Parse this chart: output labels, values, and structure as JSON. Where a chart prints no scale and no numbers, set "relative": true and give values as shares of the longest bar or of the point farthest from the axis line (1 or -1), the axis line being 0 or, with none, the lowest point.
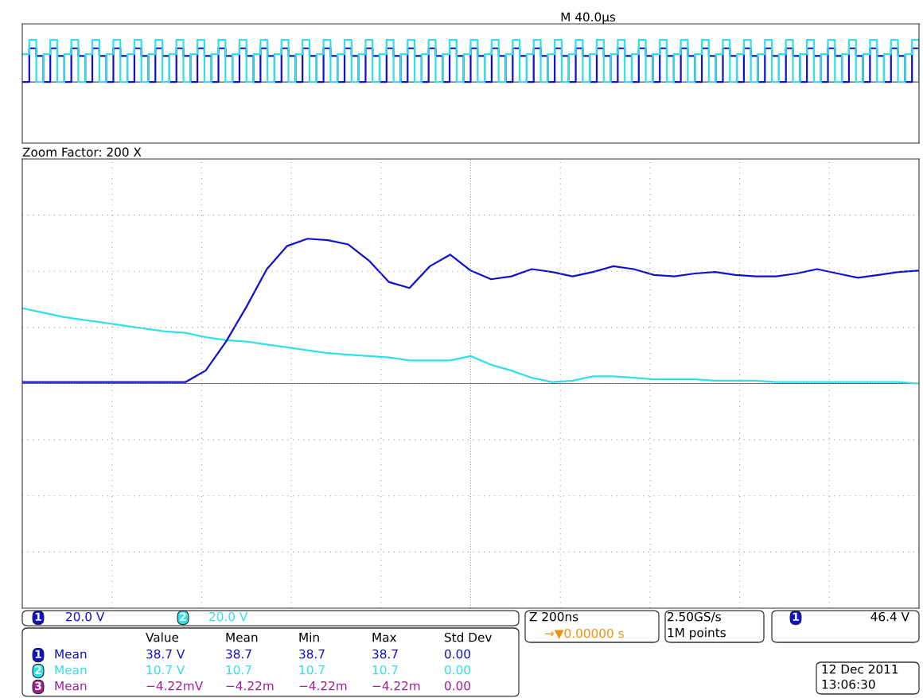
{
  "chart_data": [
    {
      "type": "step",
      "title": "M 40.0µs",
      "relative": true,
      "grid": false,
      "categories": [
        null,
        null,
        null,
        null,
        null,
        null,
        null,
        null,
        null,
        null,
        null,
        null,
        null,
        null,
        null,
        null,
        null,
        null,
        null,
        null,
        null,
        null,
        null,
        null,
        null,
        null,
        null,
        null,
        null,
        null,
        null,
        null,
        null,
        null,
        null,
        null,
        null,
        null,
        null,
        null,
        null,
        null,
        null,
        null,
        null,
        null,
        null,
        null,
        null,
        null,
        null,
        null,
        null,
        null,
        null,
        null,
        null,
        null,
        null,
        null,
        null,
        null,
        null,
        null,
        null,
        null,
        null,
        null,
        null,
        null,
        null,
        null,
        null,
        null,
        null,
        null,
        null,
        null,
        null,
        null,
        null,
        null,
        null,
        null,
        null,
        null,
        null,
        null,
        null,
        null,
        null,
        null,
        null,
        null,
        null,
        null,
        null,
        null,
        null,
        null,
        null,
        null,
        null,
        null,
        null,
        null,
        null,
        null,
        null,
        null,
        null,
        null,
        null,
        null,
        null,
        null,
        null,
        null,
        null,
        null,
        null,
        null,
        null,
        null,
        null,
        null,
        null,
        null,
        null
      ],
      "series": [
        {
          "color": "#1010d0",
          "values": [
            0,
            0.8,
            0.62,
            0,
            0.8,
            0.62,
            0,
            0.8,
            0.62,
            0,
            0.8,
            0.62,
            0,
            0.8,
            0.62,
            0,
            0.8,
            0.62,
            0,
            0.8,
            0.62,
            0,
            0.8,
            0.62,
            0,
            0.8,
            0.62,
            0,
            0.8,
            0.62,
            0,
            0.8,
            0.62,
            0,
            0.8,
            0.62,
            0,
            0.8,
            0.62,
            0,
            0.8,
            0.62,
            0,
            0.8,
            0.62,
            0,
            0.8,
            0.62,
            0,
            0.8,
            0.62,
            0,
            0.8,
            0.62,
            0,
            0.8,
            0.62,
            0,
            0.8,
            0.62,
            0,
            0.8,
            0.62,
            0,
            0.8,
            0.62,
            0,
            0.8,
            0.62,
            0,
            0.8,
            0.62,
            0,
            0.8,
            0.62,
            0,
            0.8,
            0.62,
            0,
            0.8,
            0.62,
            0,
            0.8,
            0.62,
            0,
            0.8,
            0.62,
            0,
            0.8,
            0.62,
            0,
            0.8,
            0.62,
            0,
            0.8,
            0.62,
            0,
            0.8,
            0.62,
            0,
            0.8,
            0.62,
            0,
            0.8,
            0.62,
            0,
            0.8,
            0.62,
            0,
            0.8,
            0.62,
            0,
            0.8,
            0.62,
            0,
            0.8,
            0.62,
            0,
            0.8,
            0.62,
            0,
            0.8,
            0.62,
            0,
            0.8,
            0.62,
            0,
            0.8,
            0.62
          ]
        },
        {
          "color": "#30e0e8",
          "values": [
            0.66,
            1.0,
            0,
            0.66,
            1.0,
            0,
            0.66,
            1.0,
            0,
            0.66,
            1.0,
            0,
            0.66,
            1.0,
            0,
            0.66,
            1.0,
            0,
            0.66,
            1.0,
            0,
            0.66,
            1.0,
            0,
            0.66,
            1.0,
            0,
            0.66,
            1.0,
            0,
            0.66,
            1.0,
            0,
            0.66,
            1.0,
            0,
            0.66,
            1.0,
            0,
            0.66,
            1.0,
            0,
            0.66,
            1.0,
            0,
            0.66,
            1.0,
            0,
            0.66,
            1.0,
            0,
            0.66,
            1.0,
            0,
            0.66,
            1.0,
            0,
            0.66,
            1.0,
            0,
            0.66,
            1.0,
            0,
            0.66,
            1.0,
            0,
            0.66,
            1.0,
            0,
            0.66,
            1.0,
            0,
            0.66,
            1.0,
            0,
            0.66,
            1.0,
            0,
            0.66,
            1.0,
            0,
            0.66,
            1.0,
            0,
            0.66,
            1.0,
            0,
            0.66,
            1.0,
            0,
            0.66,
            1.0,
            0,
            0.66,
            1.0,
            0,
            0.66,
            1.0,
            0,
            0.66,
            1.0,
            0,
            0.66,
            1.0,
            0,
            0.66,
            1.0,
            0,
            0.66,
            1.0,
            0,
            0.66,
            1.0,
            0,
            0.66,
            1.0,
            0,
            0.66,
            1.0,
            0,
            0.66,
            1.0,
            0,
            0.66,
            1.0,
            0,
            0.66,
            1.0,
            0
          ]
        }
      ]
    },
    {
      "type": "line",
      "title": "Zoom Factor: 200 X",
      "relative": true,
      "grid": true,
      "categories": [
        null,
        null,
        null,
        null,
        null,
        null,
        null,
        null,
        null,
        null,
        null,
        null,
        null,
        null,
        null,
        null,
        null,
        null,
        null,
        null,
        null,
        null,
        null,
        null,
        null,
        null,
        null,
        null,
        null,
        null,
        null,
        null,
        null,
        null,
        null,
        null,
        null,
        null,
        null,
        null,
        null,
        null,
        null,
        null,
        null
      ],
      "series": [
        {
          "color": "#30e0e8",
          "values": [
            0.52,
            0.49,
            0.46,
            0.44,
            0.42,
            0.4,
            0.38,
            0.36,
            0.35,
            0.32,
            0.3,
            0.29,
            0.27,
            0.25,
            0.23,
            0.21,
            0.2,
            0.19,
            0.18,
            0.16,
            0.16,
            0.16,
            0.19,
            0.13,
            0.09,
            0.04,
            0.01,
            0.02,
            0.05,
            0.05,
            0.04,
            0.03,
            0.03,
            0.03,
            0.02,
            0.02,
            0.02,
            0.01,
            0.01,
            0.01,
            0.01,
            0.01,
            0.01,
            0.01,
            0
          ]
        },
        {
          "color": "#1010d0",
          "values": [
            0.01,
            0.01,
            0.01,
            0.01,
            0.01,
            0.01,
            0.01,
            0.01,
            0.01,
            0.09,
            0.29,
            0.53,
            0.79,
            0.95,
            1.0,
            0.99,
            0.96,
            0.85,
            0.7,
            0.66,
            0.81,
            0.89,
            0.78,
            0.72,
            0.74,
            0.79,
            0.77,
            0.74,
            0.77,
            0.81,
            0.79,
            0.75,
            0.74,
            0.76,
            0.77,
            0.75,
            0.74,
            0.74,
            0.76,
            0.79,
            0.76,
            0.73,
            0.75,
            0.77,
            0.78
          ]
        }
      ],
      "annotations": [
        "1",
        "20.0 V",
        "2",
        "20.0 V",
        "Z 200ns",
        "→▼0.00000 s",
        "2.50GS/s",
        "1M points",
        "1",
        "46.4 V",
        "Value",
        "Mean",
        "Min",
        "Max",
        "Std Dev",
        "1",
        "Mean",
        "38.7 V",
        "38.7",
        "38.7",
        "38.7",
        "0.00",
        "2",
        "Mean",
        "10.7 V",
        "10.7",
        "10.7",
        "10.7",
        "0.00",
        "3",
        "Mean",
        "−4.22mV",
        "−4.22m",
        "−4.22m",
        "−4.22m",
        "0.00",
        "12 Dec 2011",
        "13:06:30"
      ]
    }
  ]
}
